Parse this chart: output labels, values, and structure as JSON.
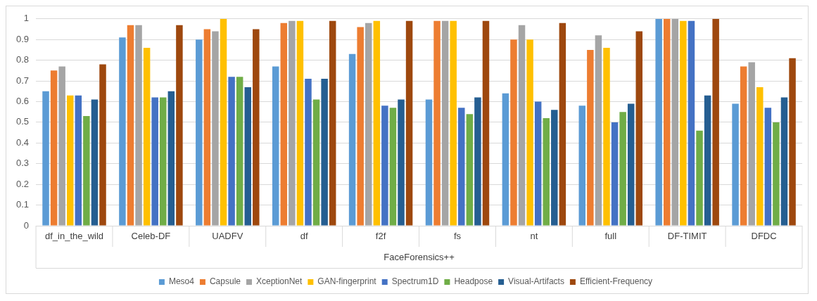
{
  "chart_data": {
    "type": "bar",
    "categories": [
      "df_in_the_wild",
      "Celeb-DF",
      "UADFV",
      "df",
      "f2f",
      "fs",
      "nt",
      "full",
      "DF-TIMIT",
      "DFDC"
    ],
    "series": [
      {
        "name": "Meso4",
        "color": "#5b9bd5",
        "values": [
          0.65,
          0.91,
          0.9,
          0.77,
          0.83,
          0.61,
          0.64,
          0.58,
          1.0,
          0.59
        ]
      },
      {
        "name": "Capsule",
        "color": "#ed7d31",
        "values": [
          0.75,
          0.97,
          0.95,
          0.98,
          0.96,
          0.99,
          0.9,
          0.85,
          1.0,
          0.77
        ]
      },
      {
        "name": "XceptionNet",
        "color": "#a5a5a5",
        "values": [
          0.77,
          0.97,
          0.94,
          0.99,
          0.98,
          0.99,
          0.97,
          0.92,
          1.0,
          0.79
        ]
      },
      {
        "name": "GAN-fingerprint",
        "color": "#ffc000",
        "values": [
          0.63,
          0.86,
          1.0,
          0.99,
          0.99,
          0.99,
          0.9,
          0.86,
          0.99,
          0.67
        ]
      },
      {
        "name": "Spectrum1D",
        "color": "#4472c4",
        "values": [
          0.63,
          0.62,
          0.72,
          0.71,
          0.58,
          0.57,
          0.6,
          0.5,
          0.99,
          0.57
        ]
      },
      {
        "name": "Headpose",
        "color": "#70ad47",
        "values": [
          0.53,
          0.62,
          0.72,
          0.61,
          0.57,
          0.54,
          0.52,
          0.55,
          0.46,
          0.5
        ]
      },
      {
        "name": "Visual-Artifacts",
        "color": "#255e91",
        "values": [
          0.61,
          0.65,
          0.67,
          0.71,
          0.61,
          0.62,
          0.56,
          0.59,
          0.63,
          0.62
        ]
      },
      {
        "name": "Efficient-Frequency",
        "color": "#9e480e",
        "values": [
          0.78,
          0.97,
          0.95,
          0.99,
          0.99,
          0.99,
          0.98,
          0.94,
          1.0,
          0.81
        ]
      }
    ],
    "ylim": [
      0,
      1
    ],
    "yticks": [
      0,
      0.1,
      0.2,
      0.3,
      0.4,
      0.5,
      0.6,
      0.7,
      0.8,
      0.9,
      1
    ],
    "annotations": [
      "FaceForensics++"
    ],
    "grid": "y",
    "legend": "bottom"
  }
}
